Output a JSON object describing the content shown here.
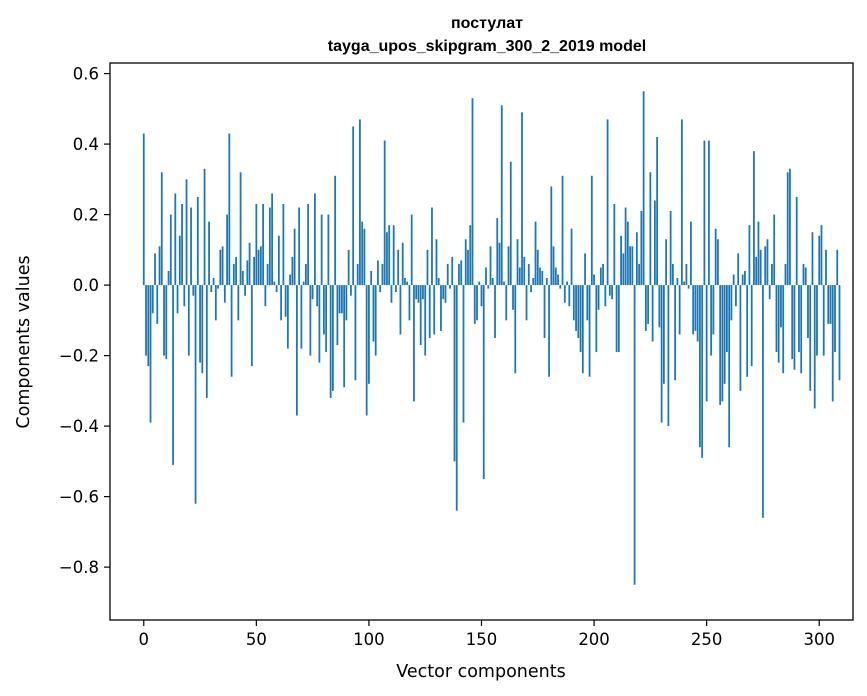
{
  "chart_data": {
    "type": "bar",
    "title_line1": "постулат",
    "title_line2": "tayga_upos_skipgram_300_2_2019 model",
    "xlabel": "Vector components",
    "ylabel": "Components values",
    "xlim": [
      -15,
      315
    ],
    "ylim": [
      -0.95,
      0.63
    ],
    "xticks": [
      0,
      50,
      100,
      150,
      200,
      250,
      300
    ],
    "xtick_labels": [
      "0",
      "50",
      "100",
      "150",
      "200",
      "250",
      "300"
    ],
    "yticks": [
      0.6,
      0.4,
      0.2,
      0.0,
      -0.2,
      -0.4,
      -0.6,
      -0.8
    ],
    "ytick_labels": [
      "0.6",
      "0.4",
      "0.2",
      "0.0",
      "−0.2",
      "−0.4",
      "−0.6",
      "−0.8"
    ],
    "bar_color": "#1f77b4",
    "values": [
      0.43,
      -0.2,
      -0.23,
      -0.39,
      -0.08,
      0.09,
      -0.11,
      0.11,
      0.32,
      -0.2,
      -0.21,
      0.04,
      0.2,
      -0.51,
      0.26,
      -0.08,
      0.14,
      0.23,
      -0.06,
      0.3,
      -0.2,
      0.22,
      -0.03,
      -0.62,
      0.25,
      -0.22,
      -0.25,
      0.33,
      -0.32,
      0.18,
      -0.02,
      0.02,
      -0.1,
      -0.01,
      0.1,
      0.11,
      -0.05,
      0.2,
      0.43,
      -0.26,
      0.06,
      0.08,
      -0.1,
      0.32,
      0.04,
      -0.03,
      0.07,
      0.12,
      -0.23,
      0.08,
      0.23,
      0.1,
      0.11,
      0.23,
      -0.06,
      0.06,
      0.22,
      0.26,
      0.01,
      -0.02,
      0.14,
      -0.1,
      0.23,
      -0.09,
      -0.18,
      0.03,
      0.08,
      0.16,
      -0.37,
      0.22,
      -0.18,
      0.01,
      0.06,
      0.23,
      -0.2,
      -0.04,
      0.26,
      -0.06,
      -0.22,
      0.2,
      -0.14,
      -0.19,
      0.2,
      -0.32,
      -0.3,
      0.31,
      -0.17,
      -0.08,
      -0.08,
      -0.29,
      -0.1,
      0.1,
      -0.03,
      0.45,
      -0.27,
      0.06,
      0.47,
      0.18,
      0.16,
      -0.37,
      -0.28,
      0.04,
      -0.16,
      -0.2,
      0.07,
      -0.02,
      0.06,
      0.41,
      0.15,
      0.17,
      -0.05,
      0.17,
      -0.02,
      0.1,
      -0.14,
      0.12,
      0.02,
      0.01,
      -0.1,
      0.2,
      -0.33,
      -0.04,
      -0.05,
      -0.17,
      -0.04,
      -0.2,
      0.1,
      -0.15,
      0.22,
      -0.14,
      0.13,
      0.02,
      -0.13,
      -0.04,
      -0.05,
      0.06,
      -0.01,
      0.08,
      -0.5,
      -0.64,
      0.06,
      0.07,
      -0.39,
      0.13,
      0.1,
      0.17,
      0.53,
      -0.11,
      -0.1,
      0.01,
      -0.06,
      -0.55,
      0.05,
      -0.01,
      0.11,
      0.02,
      -0.15,
      0.19,
      0.12,
      0.51,
      0.01,
      -0.1,
      0.11,
      0.35,
      -0.07,
      -0.25,
      0.13,
      0.05,
      0.49,
      0.08,
      -0.1,
      0.06,
      -0.02,
      0.02,
      0.18,
      0.1,
      0.05,
      0.04,
      -0.15,
      0.02,
      -0.26,
      0.28,
      0.11,
      0.05,
      0.03,
      -0.01,
      0.31,
      -0.05,
      0.01,
      -0.06,
      0.16,
      -0.1,
      -0.13,
      -0.15,
      -0.19,
      -0.25,
      0.09,
      -0.1,
      -0.26,
      0.31,
      0.03,
      -0.19,
      -0.07,
      0.05,
      0.06,
      -0.06,
      0.47,
      -0.03,
      -0.04,
      0.23,
      -0.19,
      -0.19,
      0.14,
      0.09,
      0.22,
      0.18,
      0.11,
      0.11,
      -0.85,
      0.15,
      0.06,
      0.21,
      0.55,
      -0.13,
      -0.11,
      0.32,
      -0.16,
      0.24,
      0.42,
      -0.12,
      -0.39,
      -0.28,
      0.13,
      -0.4,
      0.21,
      0.06,
      -0.27,
      0.02,
      -0.14,
      0.47,
      0.01,
      0.06,
      -0.01,
      0.18,
      -0.14,
      -0.13,
      -0.16,
      -0.46,
      -0.49,
      0.41,
      -0.33,
      0.41,
      -0.2,
      -0.14,
      0.16,
      0.13,
      -0.34,
      -0.33,
      -0.28,
      -0.19,
      -0.46,
      -0.1,
      0.03,
      -0.06,
      0.09,
      -0.3,
      0.03,
      0.04,
      -0.26,
      0.17,
      -0.23,
      0.38,
      0.08,
      0.18,
      0.1,
      -0.66,
      0.11,
      0.13,
      -0.04,
      0.06,
      0.2,
      -0.19,
      -0.22,
      -0.12,
      -0.25,
      0.06,
      0.32,
      0.33,
      -0.21,
      -0.24,
      0.25,
      -0.19,
      -0.25,
      0.06,
      0.05,
      -0.15,
      -0.3,
      0.15,
      -0.35,
      -0.2,
      0.14,
      0.17,
      -0.2,
      0.1,
      -0.11,
      -0.11,
      -0.33,
      -0.19,
      0.1,
      -0.27
    ]
  }
}
